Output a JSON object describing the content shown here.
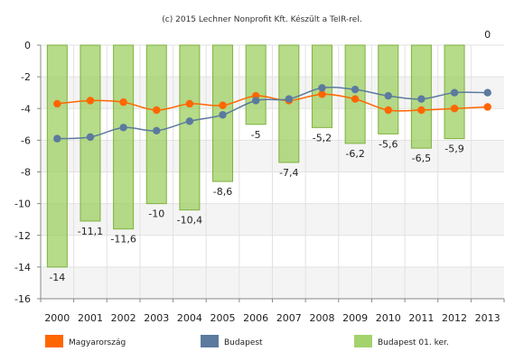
{
  "chart_data": {
    "type": "bar",
    "title": "(c) 2015 Lechner Nonprofit Kft. Készült a TeIR-rel.",
    "categories": [
      "2000",
      "2001",
      "2002",
      "2003",
      "2004",
      "2005",
      "2006",
      "2007",
      "2008",
      "2009",
      "2010",
      "2011",
      "2012",
      "2013"
    ],
    "ylim": [
      -16,
      0
    ],
    "yticks": [
      "0",
      "-2",
      "-4",
      "-6",
      "-8",
      "-10",
      "-12",
      "-14",
      "-16"
    ],
    "grid": true,
    "legend_position": "bottom",
    "series": [
      {
        "name": "Budapest 01. ker.",
        "type": "bar",
        "color": "#9acd5c",
        "values": [
          -14,
          -11.1,
          -11.6,
          -10,
          -10.4,
          -8.6,
          -5,
          -7.4,
          -5.2,
          -6.2,
          -5.6,
          -6.5,
          -5.9,
          0
        ],
        "labels": [
          "-14",
          "-11,1",
          "-11,6",
          "-10",
          "-10,4",
          "-8,6",
          "-5",
          "-7,4",
          "-5,2",
          "-6,2",
          "-5,6",
          "-6,5",
          "-5,9",
          "0"
        ]
      },
      {
        "name": "Magyarország",
        "type": "line",
        "color": "#ff6600",
        "values": [
          -3.7,
          -3.5,
          -3.6,
          -4.1,
          -3.7,
          -3.8,
          -3.2,
          -3.5,
          -3.1,
          -3.4,
          -4.1,
          -4.1,
          -4.0,
          -3.9
        ]
      },
      {
        "name": "Budapest",
        "type": "line",
        "color": "#5b7a9e",
        "values": [
          -5.9,
          -5.8,
          -5.2,
          -5.4,
          -4.8,
          -4.4,
          -3.5,
          -3.4,
          -2.7,
          -2.8,
          -3.2,
          -3.4,
          -3.0,
          -3.0
        ]
      }
    ]
  }
}
